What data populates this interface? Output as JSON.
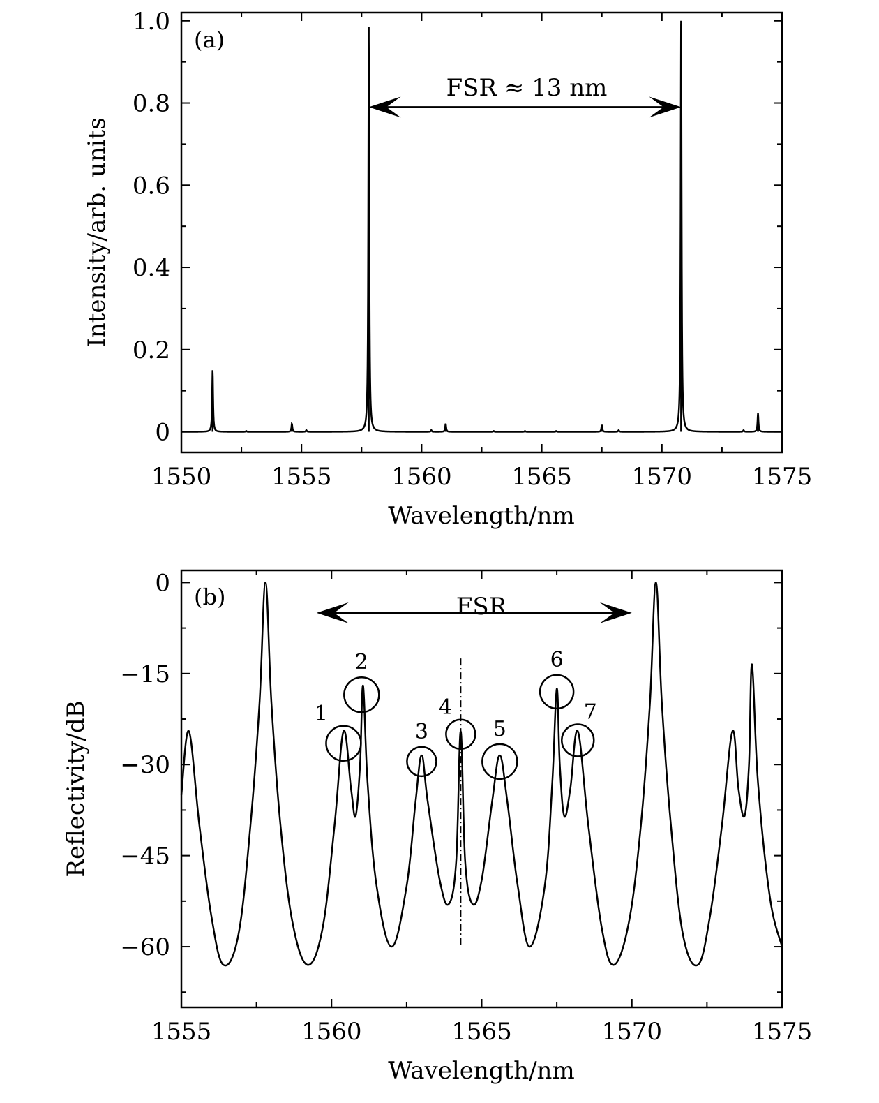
{
  "chart_data": [
    {
      "type": "line",
      "panel_label": "(a)",
      "xlabel": "Wavelength/nm",
      "ylabel": "Intensity/arb. units",
      "xlim": [
        1550,
        1575
      ],
      "ylim": [
        -0.05,
        1.02
      ],
      "xticks": [
        "1550",
        "1555",
        "1560",
        "1565",
        "1570",
        "1575"
      ],
      "yticks": [
        "0",
        "0.2",
        "0.4",
        "0.6",
        "0.8",
        "1.0"
      ],
      "baseline": 0,
      "series": [
        {
          "peaks": [
            {
              "x": 1551.3,
              "y": 0.15
            },
            {
              "x": 1552.7,
              "y": 0.002
            },
            {
              "x": 1554.6,
              "y": 0.02
            },
            {
              "x": 1555.2,
              "y": 0.004
            },
            {
              "x": 1557.8,
              "y": 0.985
            },
            {
              "x": 1560.4,
              "y": 0.004
            },
            {
              "x": 1561.0,
              "y": 0.02
            },
            {
              "x": 1563.0,
              "y": 0.002
            },
            {
              "x": 1564.3,
              "y": 0.002
            },
            {
              "x": 1565.6,
              "y": 0.002
            },
            {
              "x": 1567.5,
              "y": 0.017
            },
            {
              "x": 1568.2,
              "y": 0.004
            },
            {
              "x": 1570.8,
              "y": 1.0
            },
            {
              "x": 1573.4,
              "y": 0.004
            },
            {
              "x": 1574.0,
              "y": 0.045
            }
          ]
        }
      ],
      "annotations": [
        {
          "text": "FSR ≈ 13 nm",
          "arrow_from_x": 1557.8,
          "arrow_to_x": 1570.8,
          "y": 0.79
        }
      ]
    },
    {
      "type": "line",
      "panel_label": "(b)",
      "xlabel": "Wavelength/nm",
      "ylabel": "Reflectivity/dB",
      "xlim": [
        1555,
        1575
      ],
      "ylim": [
        -70,
        2
      ],
      "xticks": [
        "1555",
        "1560",
        "1565",
        "1570",
        "1575"
      ],
      "yticks": [
        "0",
        "−15",
        "−30",
        "−45",
        "−60"
      ],
      "series": [
        {
          "points": [
            [
              1555.0,
              -35
            ],
            [
              1555.25,
              -24.5
            ],
            [
              1555.6,
              -40
            ],
            [
              1556.0,
              -55
            ],
            [
              1556.4,
              -63
            ],
            [
              1556.9,
              -58
            ],
            [
              1557.3,
              -40
            ],
            [
              1557.6,
              -20
            ],
            [
              1557.8,
              0
            ],
            [
              1558.0,
              -20
            ],
            [
              1558.3,
              -40
            ],
            [
              1558.7,
              -56
            ],
            [
              1559.2,
              -63
            ],
            [
              1559.7,
              -57
            ],
            [
              1560.1,
              -40
            ],
            [
              1560.4,
              -24.5
            ],
            [
              1560.65,
              -34
            ],
            [
              1560.8,
              -38.5
            ],
            [
              1560.95,
              -30
            ],
            [
              1561.05,
              -17
            ],
            [
              1561.2,
              -33
            ],
            [
              1561.5,
              -50
            ],
            [
              1562.0,
              -60
            ],
            [
              1562.5,
              -50
            ],
            [
              1562.8,
              -36
            ],
            [
              1563.0,
              -28.5
            ],
            [
              1563.2,
              -36
            ],
            [
              1563.6,
              -49
            ],
            [
              1563.9,
              -53
            ],
            [
              1564.15,
              -46
            ],
            [
              1564.3,
              -24.5
            ],
            [
              1564.45,
              -46
            ],
            [
              1564.7,
              -53
            ],
            [
              1565.0,
              -49
            ],
            [
              1565.35,
              -36
            ],
            [
              1565.6,
              -28.5
            ],
            [
              1565.85,
              -36
            ],
            [
              1566.2,
              -50
            ],
            [
              1566.6,
              -60
            ],
            [
              1567.1,
              -50
            ],
            [
              1567.35,
              -33
            ],
            [
              1567.5,
              -17.5
            ],
            [
              1567.6,
              -30
            ],
            [
              1567.75,
              -38.5
            ],
            [
              1567.95,
              -34
            ],
            [
              1568.2,
              -24.5
            ],
            [
              1568.55,
              -40
            ],
            [
              1569.0,
              -57
            ],
            [
              1569.4,
              -63
            ],
            [
              1569.9,
              -56
            ],
            [
              1570.3,
              -40
            ],
            [
              1570.6,
              -20
            ],
            [
              1570.8,
              0
            ],
            [
              1571.0,
              -20
            ],
            [
              1571.3,
              -40
            ],
            [
              1571.7,
              -58
            ],
            [
              1572.2,
              -63
            ],
            [
              1572.6,
              -55
            ],
            [
              1573.0,
              -40
            ],
            [
              1573.35,
              -24.5
            ],
            [
              1573.55,
              -34
            ],
            [
              1573.75,
              -38.5
            ],
            [
              1573.9,
              -30
            ],
            [
              1574.0,
              -13.5
            ],
            [
              1574.2,
              -33
            ],
            [
              1574.6,
              -52
            ],
            [
              1575.0,
              -60
            ]
          ]
        }
      ],
      "peak_markers": [
        {
          "label": "1",
          "x": 1560.4,
          "y": -26.5
        },
        {
          "label": "2",
          "x": 1561.0,
          "y": -18.5
        },
        {
          "label": "3",
          "x": 1563.0,
          "y": -29.5
        },
        {
          "label": "4",
          "x": 1564.3,
          "y": -25
        },
        {
          "label": "5",
          "x": 1565.6,
          "y": -29.5
        },
        {
          "label": "6",
          "x": 1567.5,
          "y": -18
        },
        {
          "label": "7",
          "x": 1568.2,
          "y": -26
        }
      ],
      "center_line_x": 1564.3,
      "annotations": [
        {
          "text": "FSR",
          "arrow_from_x": 1559.5,
          "arrow_to_x": 1570.0,
          "y": -5
        }
      ]
    }
  ]
}
